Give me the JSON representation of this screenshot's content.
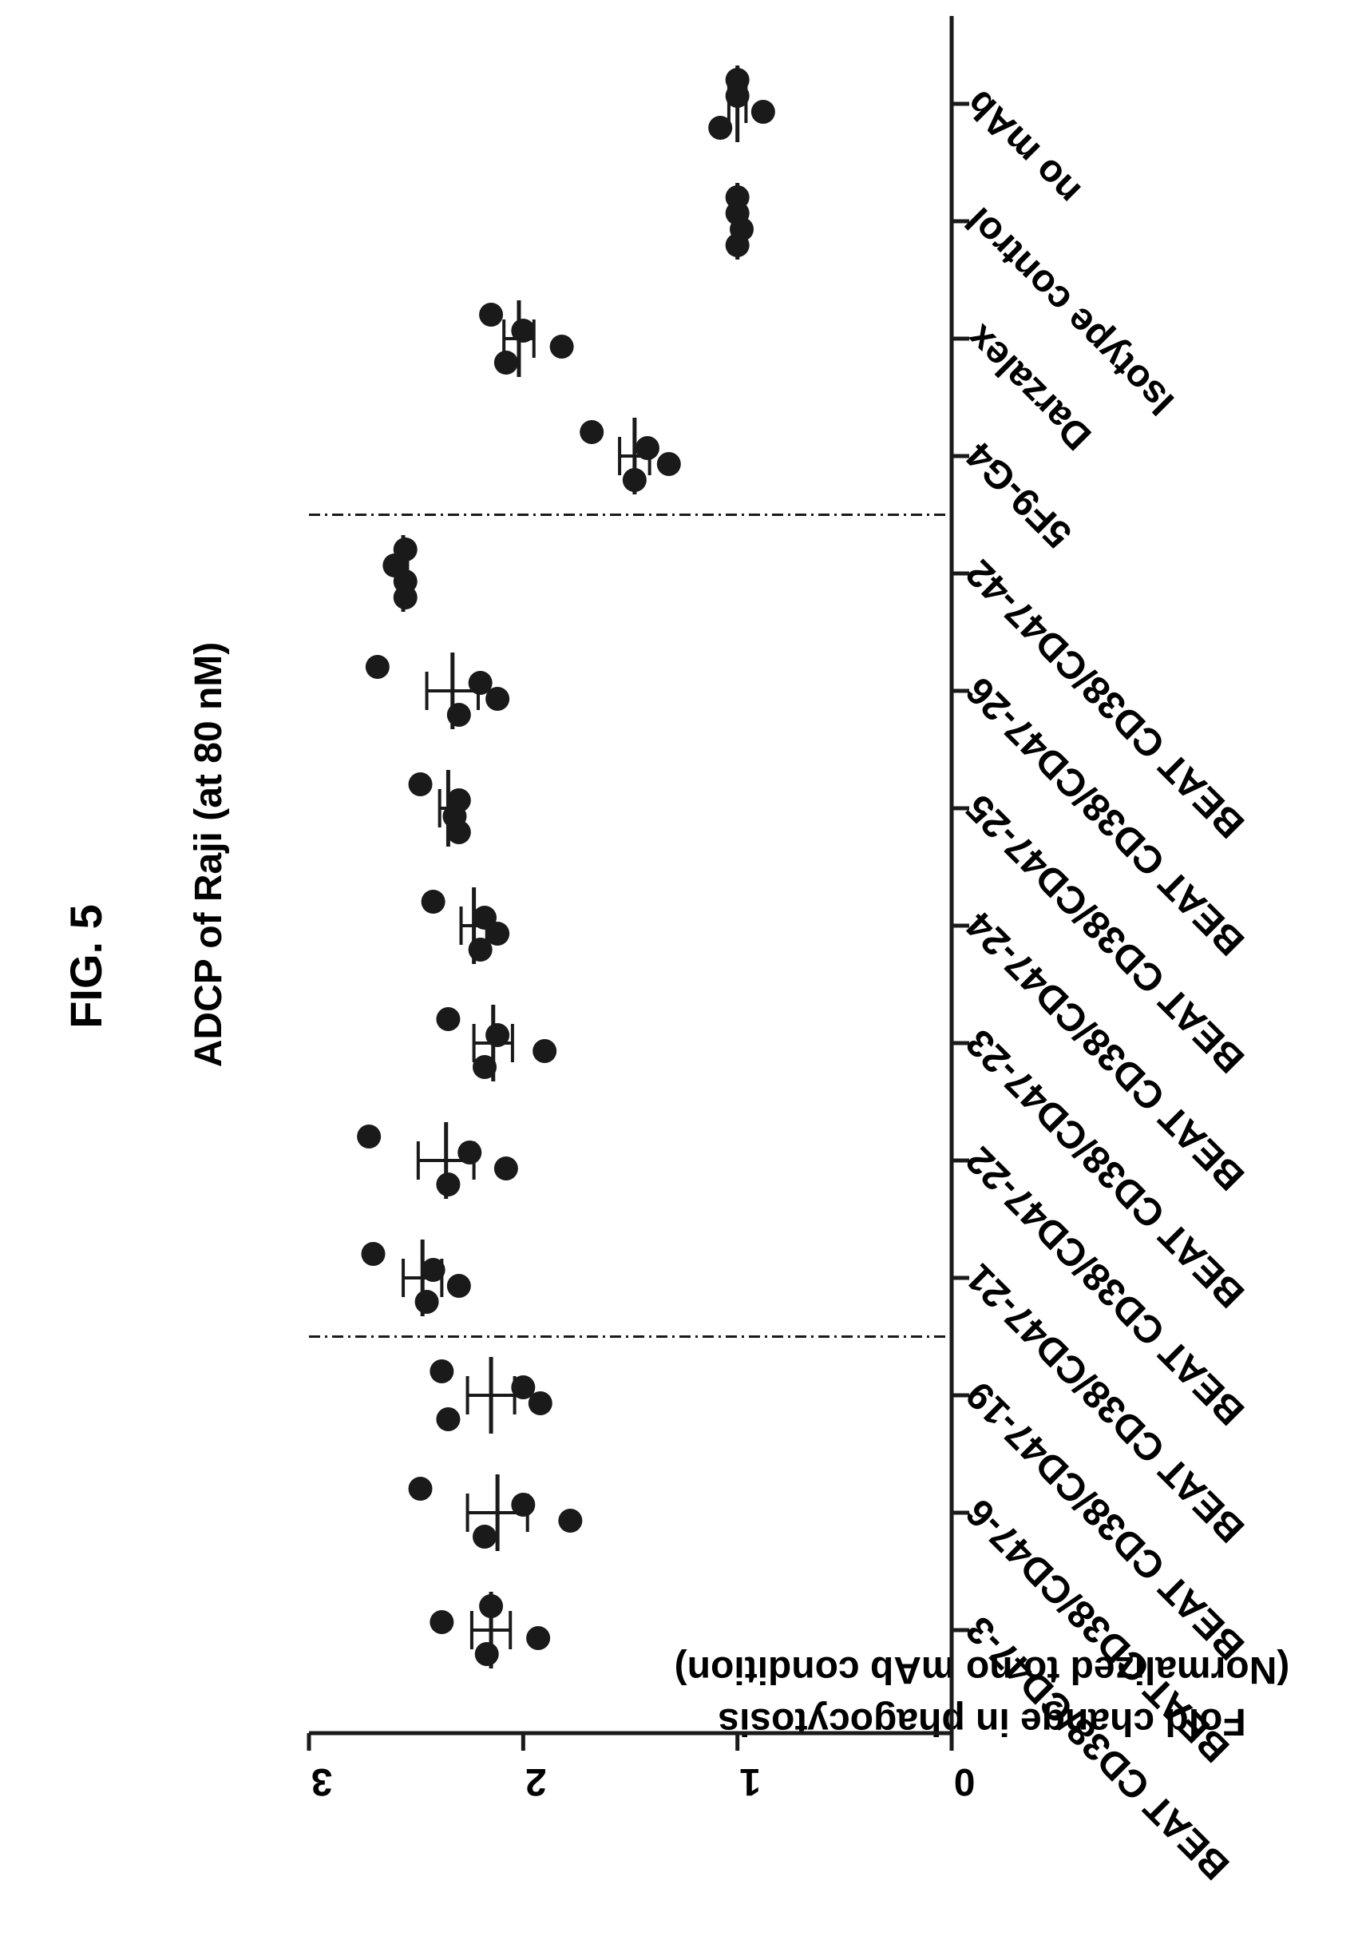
{
  "figure_label": "FIG. 5",
  "chart_data": {
    "type": "scatter",
    "title": "ADCP of Raji (at 80 nM)",
    "ylabel_line1": "Fold change in phagocytosis",
    "ylabel_line2": "(Normalized to no mAb condition)",
    "xlabel": "",
    "ylim": [
      0,
      3
    ],
    "yticks": [
      0,
      1,
      2,
      3
    ],
    "ytick_labels": [
      "0",
      "1",
      "2",
      "3"
    ],
    "categories": [
      "BEAT CD38/CD47-3",
      "BEAT CD38/CD47-6",
      "BEAT CD38/CD47-19",
      "BEAT CD38/CD47-21",
      "BEAT CD38/CD47-22",
      "BEAT CD38/CD47-23",
      "BEAT CD38/CD47-24",
      "BEAT CD38/CD47-25",
      "BEAT CD38/CD47-26",
      "BEAT CD38/CD47-42",
      "5F9-G4",
      "Darzalex",
      "Isotype control",
      "no mAb"
    ],
    "points": [
      [
        2.15,
        2.38,
        1.93,
        2.17
      ],
      [
        2.48,
        2.0,
        1.78,
        2.18
      ],
      [
        2.38,
        2.0,
        1.92,
        2.35
      ],
      [
        2.7,
        2.42,
        2.3,
        2.45
      ],
      [
        2.72,
        2.25,
        2.08,
        2.35
      ],
      [
        2.35,
        2.12,
        1.9,
        2.18
      ],
      [
        2.42,
        2.18,
        2.12,
        2.2
      ],
      [
        2.48,
        2.3,
        2.32,
        2.3
      ],
      [
        2.68,
        2.2,
        2.12,
        2.3
      ],
      [
        2.55,
        2.6,
        2.55,
        2.55
      ],
      [
        1.68,
        1.42,
        1.32,
        1.48
      ],
      [
        2.15,
        2.0,
        1.82,
        2.08
      ],
      [
        1.0,
        1.0,
        0.98,
        1.0
      ],
      [
        1.0,
        1.0,
        0.88,
        1.08
      ]
    ],
    "means": [
      2.15,
      2.12,
      2.15,
      2.47,
      2.36,
      2.14,
      2.23,
      2.35,
      2.33,
      2.56,
      1.48,
      2.02,
      1.0,
      1.0
    ],
    "sems": [
      0.09,
      0.14,
      0.11,
      0.09,
      0.13,
      0.09,
      0.06,
      0.04,
      0.12,
      0.02,
      0.07,
      0.07,
      0.01,
      0.04
    ],
    "dividers_after_index": [
      2,
      9
    ],
    "colors": {
      "marks": "#1a1a1a",
      "background": "#ffffff"
    }
  }
}
